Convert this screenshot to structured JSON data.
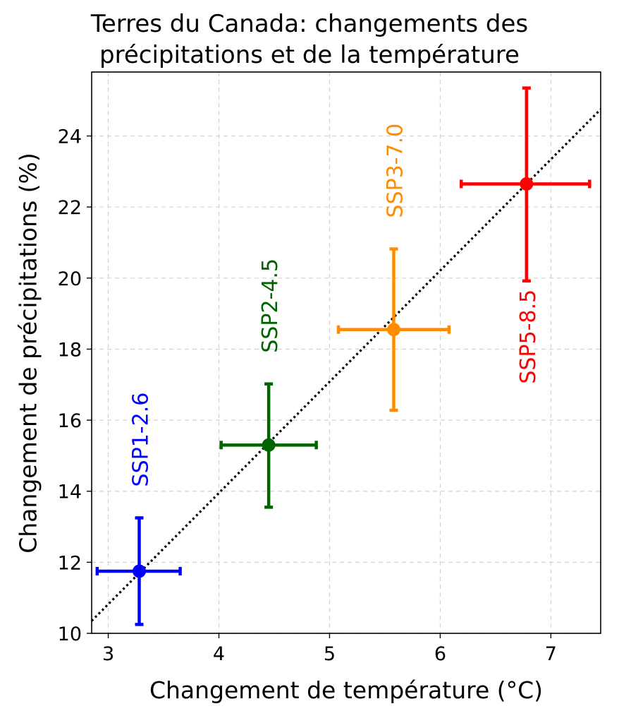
{
  "chart_data": {
    "type": "scatter",
    "title_line1": "Terres du Canada: changements des",
    "title_line2": "précipitations et de la température",
    "xlabel": "Changement de température (°C)",
    "ylabel": "Changement de précipitations (%)",
    "xlim": [
      2.85,
      7.45
    ],
    "ylim": [
      10,
      25.8
    ],
    "x_ticks": [
      3,
      4,
      5,
      6,
      7
    ],
    "y_ticks": [
      10,
      12,
      14,
      16,
      18,
      20,
      22,
      24
    ],
    "grid": true,
    "series": [
      {
        "name": "SSP1-2.6",
        "color": "#0000ff",
        "x": 3.28,
        "y": 11.75,
        "x_low": 2.9,
        "x_high": 3.65,
        "y_low": 10.25,
        "y_high": 13.25
      },
      {
        "name": "SSP2-4.5",
        "color": "#006400",
        "x": 4.45,
        "y": 15.3,
        "x_low": 4.02,
        "x_high": 4.88,
        "y_low": 13.55,
        "y_high": 17.02
      },
      {
        "name": "SSP3-7.0",
        "color": "#ff8c00",
        "x": 5.58,
        "y": 18.55,
        "x_low": 5.08,
        "x_high": 6.08,
        "y_low": 16.28,
        "y_high": 20.82
      },
      {
        "name": "SSP5-8.5",
        "color": "#ff0000",
        "x": 6.78,
        "y": 22.65,
        "x_low": 6.19,
        "x_high": 7.35,
        "y_low": 19.92,
        "y_high": 25.35
      }
    ],
    "fit_line": {
      "style": "dotted",
      "color": "#000000",
      "x": [
        2.85,
        7.45
      ],
      "y": [
        10.35,
        24.75
      ]
    }
  }
}
